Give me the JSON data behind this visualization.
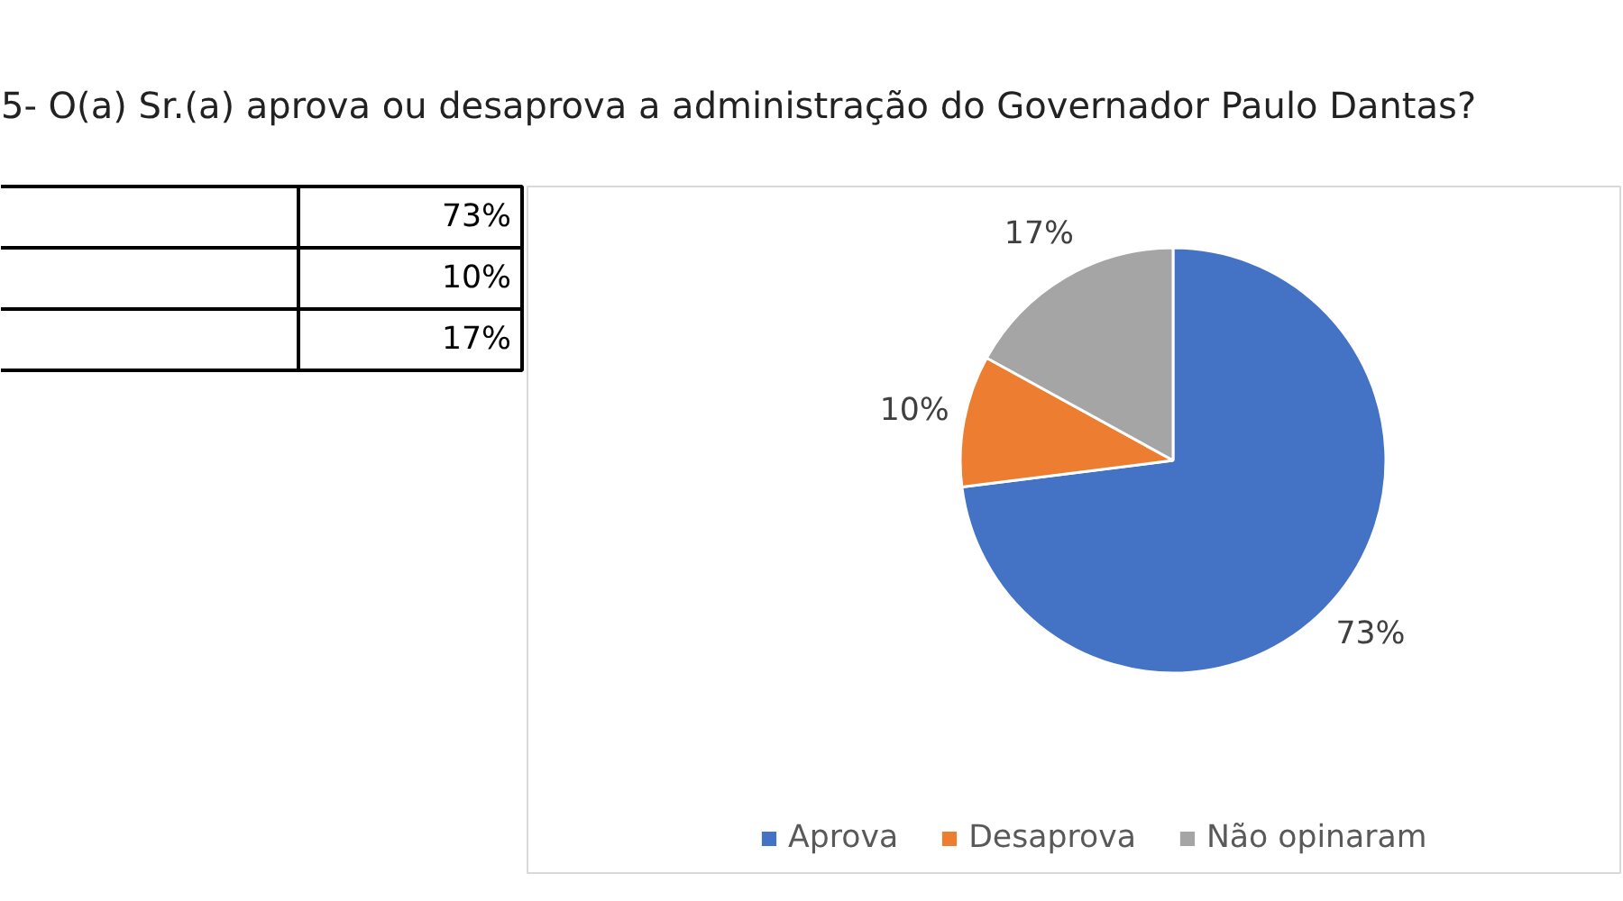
{
  "chart_data": {
    "type": "pie",
    "title": "5- O(a) Sr.(a) aprova ou desaprova a administração do Governador Paulo Dantas?",
    "categories": [
      "Aprova",
      "Desaprova",
      "Não opinaram"
    ],
    "values": [
      73,
      10,
      17
    ],
    "colors": [
      "#4472c4",
      "#ed7d31",
      "#a5a5a5"
    ],
    "value_labels": [
      "73%",
      "10%",
      "17%"
    ],
    "legend": "bottom"
  }
}
